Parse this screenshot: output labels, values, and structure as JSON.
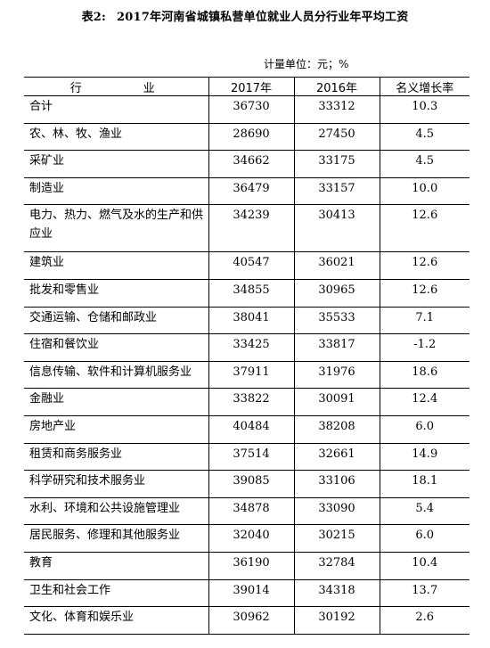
{
  "document": {
    "table_label": "表2:",
    "title": "2017年河南省城镇私营单位就业人员分行业年平均工资",
    "unit": "计量单位：元；%"
  },
  "table": {
    "headers": [
      "行　业",
      "2017年",
      "2016年",
      "名义增长率"
    ],
    "rows": [
      {
        "name": "合计",
        "y2017": "36730",
        "y2016": "33312",
        "growth": "10.3"
      },
      {
        "name": "农、林、牧、渔业",
        "y2017": "28690",
        "y2016": "27450",
        "growth": "4.5"
      },
      {
        "name": "采矿业",
        "y2017": "34662",
        "y2016": "33175",
        "growth": "4.5"
      },
      {
        "name": "制造业",
        "y2017": "36479",
        "y2016": "33157",
        "growth": "10.0"
      },
      {
        "name": "电力、热力、燃气及水的生产和供应业",
        "y2017": "34239",
        "y2016": "30413",
        "growth": "12.6"
      },
      {
        "name": "建筑业",
        "y2017": "40547",
        "y2016": "36021",
        "growth": "12.6"
      },
      {
        "name": "批发和零售业",
        "y2017": "34855",
        "y2016": "30965",
        "growth": "12.6"
      },
      {
        "name": "交通运输、仓储和邮政业",
        "y2017": "38041",
        "y2016": "35533",
        "growth": "7.1"
      },
      {
        "name": "住宿和餐饮业",
        "y2017": "33425",
        "y2016": "33817",
        "growth": "-1.2"
      },
      {
        "name": "信息传输、软件和计算机服务业",
        "y2017": "37911",
        "y2016": "31976",
        "growth": "18.6"
      },
      {
        "name": "金融业",
        "y2017": "33822",
        "y2016": "30091",
        "growth": "12.4"
      },
      {
        "name": "房地产业",
        "y2017": "40484",
        "y2016": "38208",
        "growth": "6.0"
      },
      {
        "name": "租赁和商务服务业",
        "y2017": "37514",
        "y2016": "32661",
        "growth": "14.9"
      },
      {
        "name": "科学研究和技术服务业",
        "y2017": "39085",
        "y2016": "33106",
        "growth": "18.1"
      },
      {
        "name": "水利、环境和公共设施管理业",
        "y2017": "34878",
        "y2016": "33090",
        "growth": "5.4"
      },
      {
        "name": "居民服务、修理和其他服务业",
        "y2017": "32040",
        "y2016": "30215",
        "growth": "6.0"
      },
      {
        "name": "教育",
        "y2017": "36190",
        "y2016": "32784",
        "growth": "10.4"
      },
      {
        "name": "卫生和社会工作",
        "y2017": "39014",
        "y2016": "34318",
        "growth": "13.7"
      },
      {
        "name": "文化、体育和娱乐业",
        "y2017": "30962",
        "y2016": "30192",
        "growth": "2.6"
      }
    ]
  }
}
